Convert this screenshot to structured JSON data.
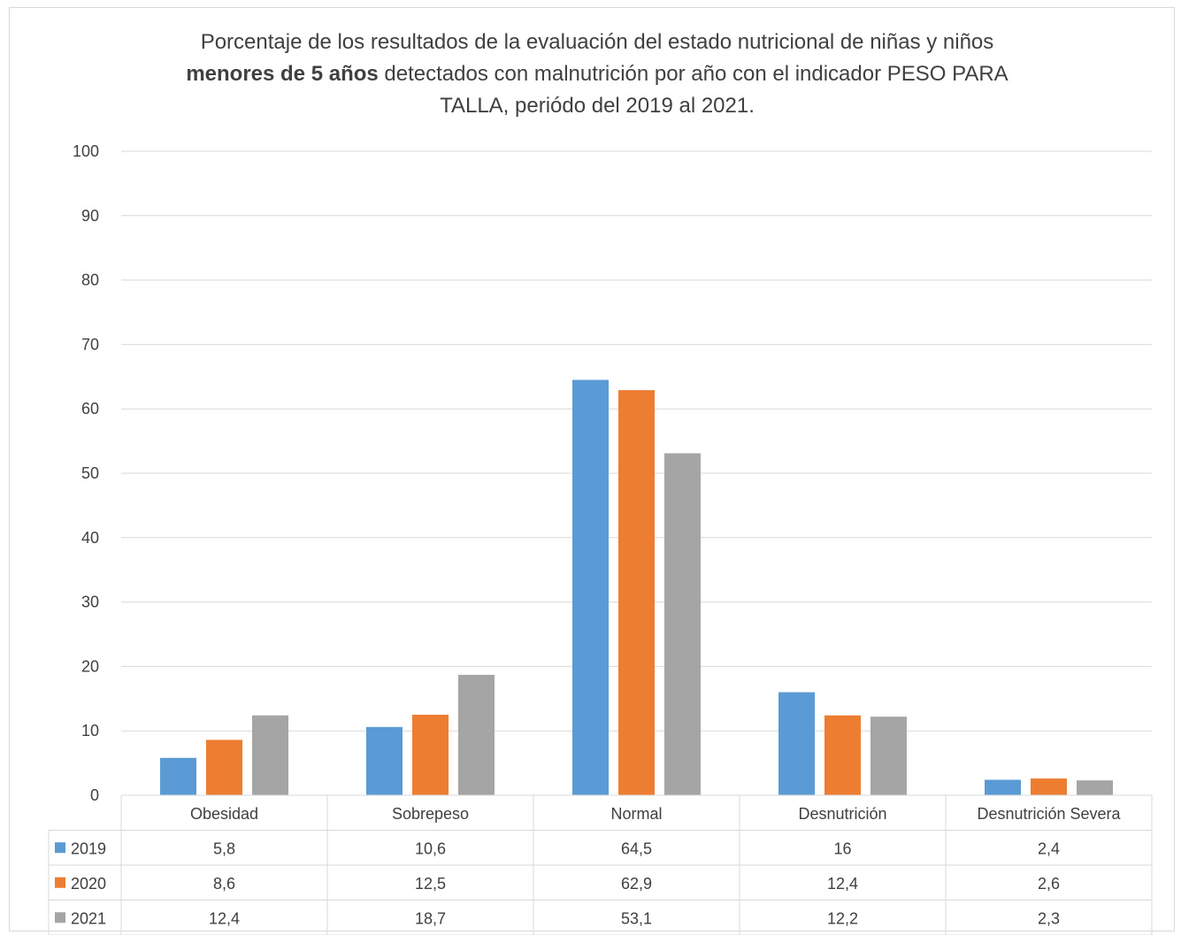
{
  "chart_data": {
    "type": "bar",
    "title": {
      "line1": "Porcentaje de los resultados de la evaluación del estado nutricional  de niñas y niños",
      "line2_bold": "menores de 5 años",
      "line2_rest": " detectados con malnutrición por año con el indicador PESO PARA",
      "line3": "TALLA, periódo del 2019 al 2021."
    },
    "categories": [
      "Obesidad",
      "Sobrepeso",
      "Normal",
      "Desnutrición",
      "Desnutrición Severa"
    ],
    "series": [
      {
        "name": "2019",
        "color": "#5b9bd5",
        "values": [
          5.8,
          10.6,
          64.5,
          16,
          2.4
        ],
        "labels": [
          "5,8",
          "10,6",
          "64,5",
          "16",
          "2,4"
        ]
      },
      {
        "name": "2020",
        "color": "#ed7d31",
        "values": [
          8.6,
          12.5,
          62.9,
          12.4,
          2.6
        ],
        "labels": [
          "8,6",
          "12,5",
          "62,9",
          "12,4",
          "2,6"
        ]
      },
      {
        "name": "2021",
        "color": "#a5a5a5",
        "values": [
          12.4,
          18.7,
          53.1,
          12.2,
          2.3
        ],
        "labels": [
          "12,4",
          "18,7",
          "53,1",
          "12,2",
          "2,3"
        ]
      }
    ],
    "ylim": [
      0,
      100
    ],
    "yticks": [
      "0",
      "10",
      "20",
      "30",
      "40",
      "50",
      "60",
      "70",
      "80",
      "90",
      "100"
    ],
    "grid": true,
    "legend": "data-table"
  }
}
